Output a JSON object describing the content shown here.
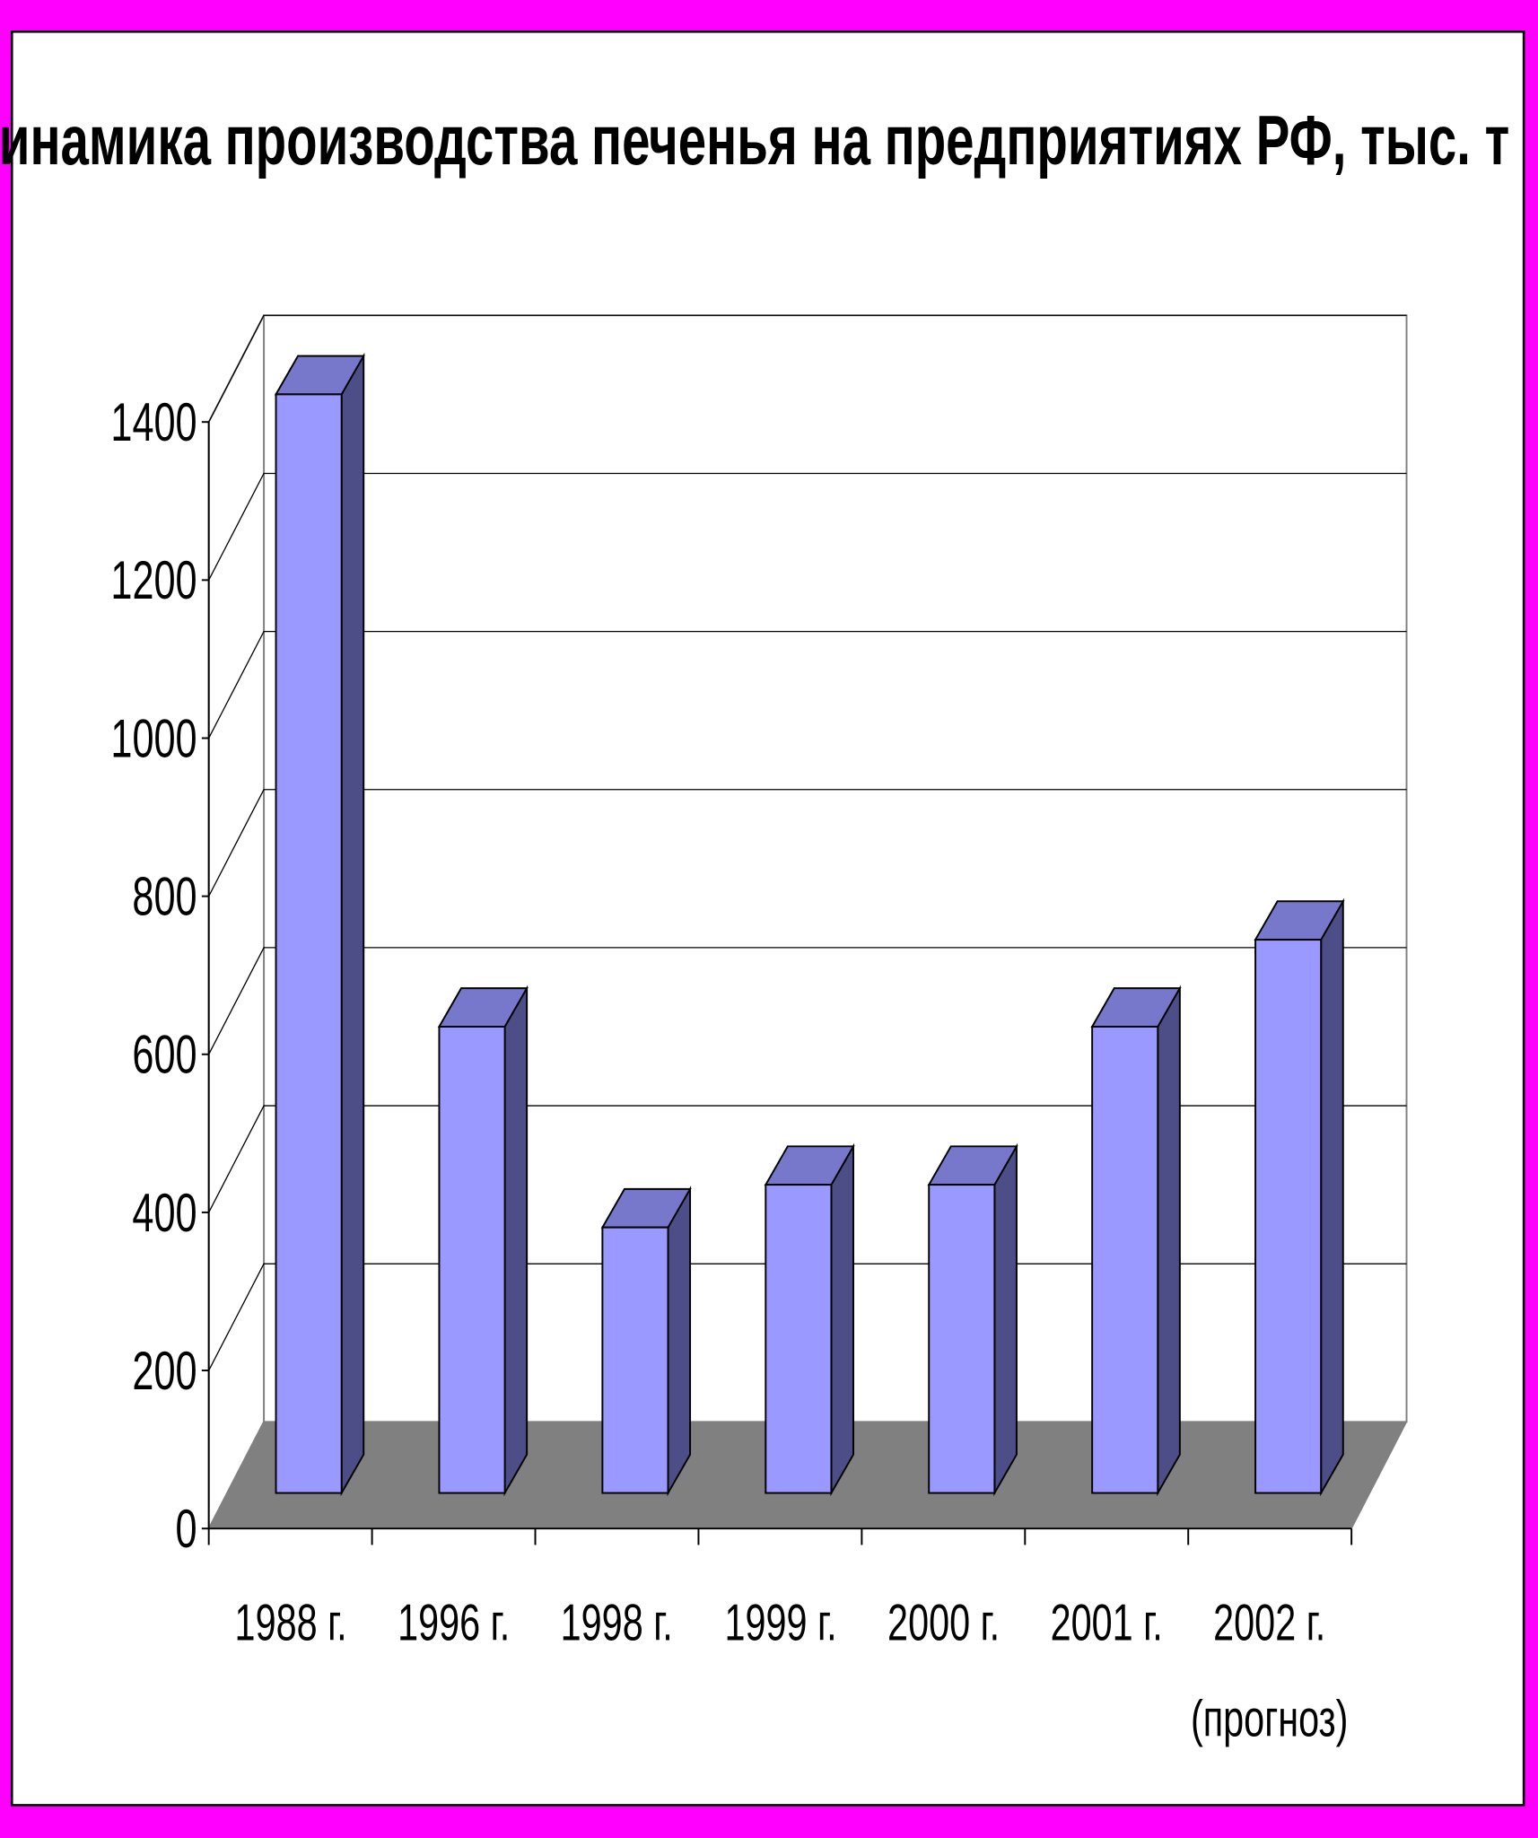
{
  "chart_data": {
    "type": "bar3d",
    "title": "Динамика производства печенья на предприятиях РФ, тыс. т",
    "categories": [
      "1988 г.",
      "1996 г.",
      "1998 г.",
      "1999 г.",
      "2000 г.",
      "2001 г.",
      "2002 г.\n(прогноз)"
    ],
    "values": [
      1390,
      590,
      336,
      390,
      390,
      590,
      700
    ],
    "color": "#9999ff",
    "ylim": [
      0,
      1400
    ],
    "yticks": [
      0,
      200,
      400,
      600,
      800,
      1000,
      1200,
      1400
    ],
    "grid": true
  }
}
